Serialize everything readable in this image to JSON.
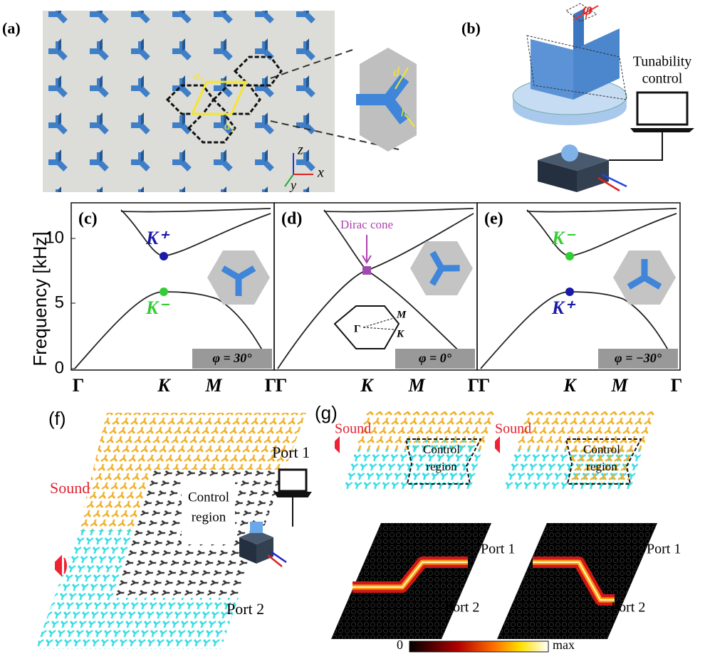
{
  "panels": {
    "a": {
      "label": "(a)",
      "a1": "a₁",
      "a2": "a₂",
      "d": "d",
      "h": "h",
      "z": "z",
      "x": "x",
      "y": "y"
    },
    "b": {
      "label": "(b)",
      "phi": "φ",
      "tunability": "Tunability",
      "control": "control"
    },
    "band_structure": {
      "ylabel": "Frequency [kHz]",
      "yticks": [
        "0",
        "5",
        "10"
      ],
      "panels": [
        {
          "label": "(c)",
          "xticks": [
            "Γ",
            "K",
            "M",
            "Γ"
          ],
          "upper_point": "K⁺",
          "lower_point": "K⁻",
          "angle": "φ = 30°"
        },
        {
          "label": "(d)",
          "xticks": [
            "Γ",
            "K",
            "M",
            "Γ"
          ],
          "annotation": "Dirac cone",
          "bz_labels": [
            "Γ",
            "M",
            "K"
          ],
          "angle": "φ = 0°"
        },
        {
          "label": "(e)",
          "xticks": [
            "Γ",
            "K",
            "M",
            "Γ"
          ],
          "upper_point": "K⁻",
          "lower_point": "K⁺",
          "angle": "φ = −30°"
        }
      ]
    },
    "f": {
      "label": "(f)",
      "sound": "Sound",
      "port1": "Port 1",
      "port2": "Port 2",
      "control_region": [
        "Control",
        "region"
      ]
    },
    "g": {
      "label": "(g)",
      "top_panels": [
        {
          "sound": "Sound",
          "control_region": [
            "Control",
            "region"
          ]
        },
        {
          "sound": "Sound",
          "control_region": [
            "Control",
            "region"
          ]
        }
      ],
      "bottom_panels": [
        {
          "port1": "Port 1",
          "port2": "Port 2"
        },
        {
          "port1": "Port 1",
          "port2": "Port 2"
        }
      ],
      "colorbar": [
        "0",
        "max"
      ]
    }
  }
}
